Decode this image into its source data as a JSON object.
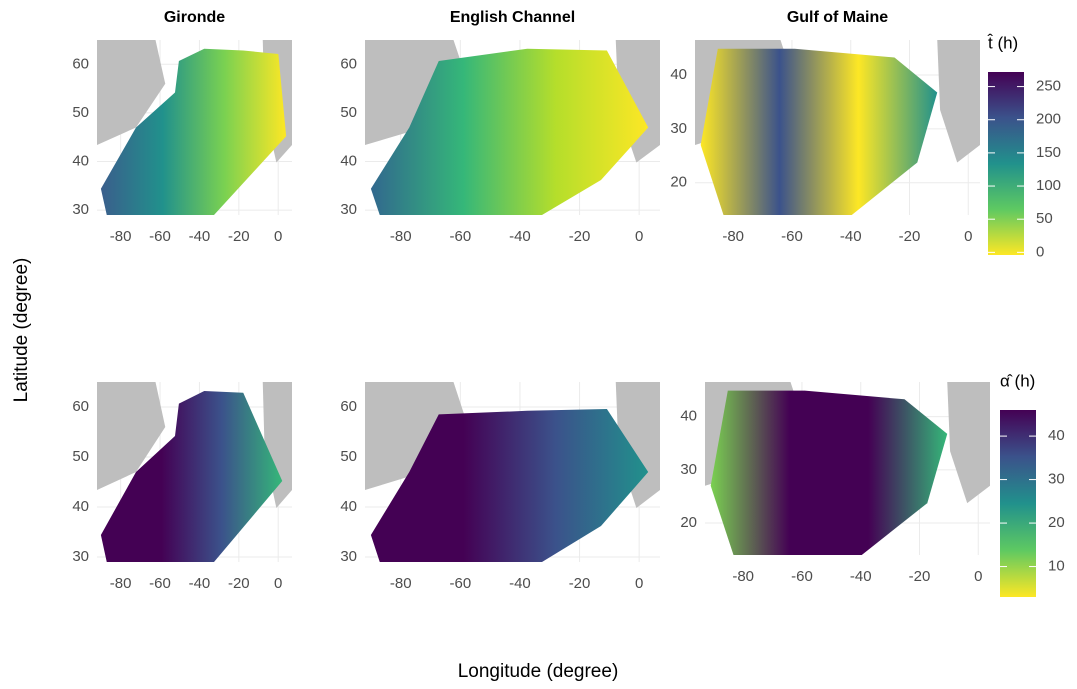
{
  "x_label": "Longitude (degree)",
  "y_label": "Latitude (degree)",
  "chart_data": [
    {
      "type": "heatmap",
      "title": "Gironde",
      "xlim": [
        -92,
        7
      ],
      "ylim": [
        29,
        65
      ],
      "xticks": [
        -80,
        -60,
        -40,
        -20,
        0
      ],
      "yticks": [
        30,
        40,
        50,
        60
      ]
    },
    {
      "type": "heatmap",
      "title": "English Channel",
      "xlim": [
        -92,
        7
      ],
      "ylim": [
        29,
        65
      ],
      "xticks": [
        -80,
        -60,
        -40,
        -20,
        0
      ],
      "yticks": [
        30,
        40,
        50,
        60
      ]
    },
    {
      "type": "heatmap",
      "title": "Gulf of Maine",
      "xlim": [
        -93,
        4
      ],
      "ylim": [
        14,
        46.5
      ],
      "xticks": [
        -80,
        -60,
        -40,
        -20,
        0
      ],
      "yticks": [
        20,
        30,
        40
      ],
      "colorbar": {
        "title": "t̂ (h)",
        "lim": [
          -4,
          272
        ],
        "ticks": [
          0,
          50,
          100,
          150,
          200,
          250
        ],
        "colors": [
          "#fde725",
          "#5ec962",
          "#21918c",
          "#3b528b",
          "#440154"
        ]
      }
    },
    {
      "type": "heatmap",
      "xlim": [
        -92,
        7
      ],
      "ylim": [
        29,
        65
      ],
      "xticks": [
        -80,
        -60,
        -40,
        -20,
        0
      ],
      "yticks": [
        30,
        40,
        50,
        60
      ]
    },
    {
      "type": "heatmap",
      "xlim": [
        -92,
        7
      ],
      "ylim": [
        29,
        65
      ],
      "xticks": [
        -80,
        -60,
        -40,
        -20,
        0
      ],
      "yticks": [
        30,
        40,
        50,
        60
      ]
    },
    {
      "type": "heatmap",
      "xlim": [
        -93,
        4
      ],
      "ylim": [
        14,
        46.5
      ],
      "xticks": [
        -80,
        -60,
        -40,
        -20,
        0
      ],
      "yticks": [
        20,
        30,
        40
      ],
      "colorbar": {
        "title": "α̂ (h)",
        "lim": [
          3,
          46
        ],
        "ticks": [
          10,
          20,
          30,
          40
        ],
        "colors": [
          "#fde725",
          "#5ec962",
          "#21918c",
          "#3b528b",
          "#440154"
        ]
      }
    }
  ]
}
